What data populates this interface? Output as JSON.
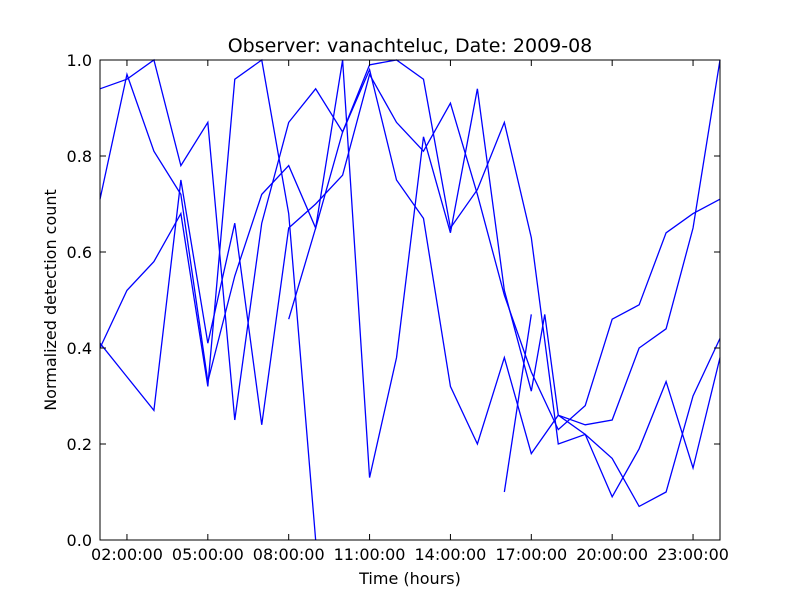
{
  "chart_data": {
    "type": "line",
    "title": "Observer: vanachteluc, Date: 2009-08",
    "xlabel": "Time (hours)",
    "ylabel": "Normalized detection count",
    "x_unit": "hours",
    "xlim": [
      1,
      24
    ],
    "ylim": [
      0,
      1
    ],
    "x_ticks": [
      {
        "value": 2,
        "label": "02:00:00"
      },
      {
        "value": 5,
        "label": "05:00:00"
      },
      {
        "value": 8,
        "label": "08:00:00"
      },
      {
        "value": 11,
        "label": "11:00:00"
      },
      {
        "value": 14,
        "label": "14:00:00"
      },
      {
        "value": 17,
        "label": "17:00:00"
      },
      {
        "value": 20,
        "label": "20:00:00"
      },
      {
        "value": 23,
        "label": "23:00:00"
      }
    ],
    "y_ticks": [
      {
        "value": 0.0,
        "label": "0.0"
      },
      {
        "value": 0.2,
        "label": "0.2"
      },
      {
        "value": 0.4,
        "label": "0.4"
      },
      {
        "value": 0.6,
        "label": "0.6"
      },
      {
        "value": 0.8,
        "label": "0.8"
      },
      {
        "value": 1.0,
        "label": "1.0"
      }
    ],
    "grid": false,
    "legend": "none",
    "line_color": "#0000ff",
    "series": [
      {
        "values": [
          [
            1,
            0.71
          ],
          [
            2,
            0.97
          ],
          [
            3,
            0.81
          ],
          [
            4,
            0.72
          ],
          [
            5,
            0.33
          ],
          [
            6,
            0.55
          ],
          [
            7,
            0.72
          ],
          [
            8,
            0.78
          ],
          [
            9,
            0.65
          ],
          [
            10,
            0.85
          ],
          [
            11,
            0.99
          ],
          [
            12,
            1.0
          ],
          [
            13,
            0.96
          ],
          [
            14,
            0.65
          ],
          [
            15,
            0.73
          ],
          [
            16,
            0.87
          ],
          [
            17,
            0.63
          ],
          [
            18,
            0.2
          ],
          [
            19,
            0.22
          ],
          [
            20,
            0.09
          ],
          [
            21,
            0.19
          ],
          [
            22,
            0.33
          ],
          [
            23,
            0.15
          ],
          [
            24,
            0.38
          ]
        ]
      },
      {
        "values": [
          [
            1,
            0.94
          ],
          [
            2,
            0.96
          ],
          [
            3,
            1.0
          ],
          [
            4,
            0.78
          ],
          [
            5,
            0.87
          ],
          [
            6,
            0.25
          ],
          [
            7,
            0.66
          ],
          [
            8,
            0.87
          ],
          [
            9,
            0.94
          ],
          [
            10,
            0.85
          ],
          [
            11,
            0.98
          ],
          [
            12,
            0.75
          ],
          [
            13,
            0.67
          ],
          [
            14,
            0.32
          ],
          [
            15,
            0.2
          ],
          [
            16,
            0.38
          ],
          [
            17,
            0.18
          ],
          [
            18,
            0.26
          ],
          [
            19,
            0.22
          ],
          [
            20,
            0.17
          ],
          [
            21,
            0.07
          ],
          [
            22,
            0.1
          ],
          [
            23,
            0.3
          ],
          [
            24,
            0.42
          ]
        ]
      },
      {
        "values": [
          [
            1,
            0.4
          ],
          [
            2,
            0.52
          ],
          [
            3,
            0.58
          ],
          [
            4,
            0.68
          ],
          [
            5,
            0.32
          ],
          [
            6,
            0.96
          ],
          [
            7,
            1.0
          ],
          [
            8,
            0.68
          ],
          [
            9,
            0.0
          ]
        ]
      },
      {
        "values": [
          [
            1,
            0.41
          ],
          [
            3,
            0.27
          ],
          [
            4,
            0.75
          ],
          [
            5,
            0.41
          ],
          [
            6,
            0.66
          ],
          [
            7,
            0.24
          ],
          [
            8,
            0.65
          ],
          [
            9,
            0.7
          ],
          [
            10,
            0.76
          ],
          [
            11,
            0.97
          ],
          [
            12,
            0.87
          ],
          [
            13,
            0.81
          ],
          [
            14,
            0.91
          ],
          [
            15,
            0.72
          ],
          [
            16,
            0.51
          ],
          [
            17,
            0.35
          ],
          [
            18,
            0.23
          ],
          [
            19,
            0.28
          ],
          [
            20,
            0.46
          ],
          [
            21,
            0.49
          ],
          [
            22,
            0.64
          ],
          [
            23,
            0.68
          ],
          [
            24,
            0.71
          ]
        ]
      },
      {
        "values": [
          [
            8,
            0.46
          ],
          [
            9,
            0.65
          ],
          [
            10,
            1.0
          ],
          [
            11,
            0.13
          ],
          [
            12,
            0.38
          ],
          [
            13,
            0.84
          ],
          [
            14,
            0.64
          ],
          [
            15,
            0.94
          ],
          [
            16,
            0.52
          ],
          [
            17,
            0.31
          ],
          [
            17.5,
            0.47
          ],
          [
            18,
            0.26
          ],
          [
            19,
            0.24
          ],
          [
            20,
            0.25
          ],
          [
            21,
            0.4
          ],
          [
            22,
            0.44
          ],
          [
            23,
            0.65
          ],
          [
            24,
            1.0
          ]
        ]
      },
      {
        "values": [
          [
            16,
            0.1
          ],
          [
            17,
            0.47
          ]
        ]
      }
    ]
  }
}
